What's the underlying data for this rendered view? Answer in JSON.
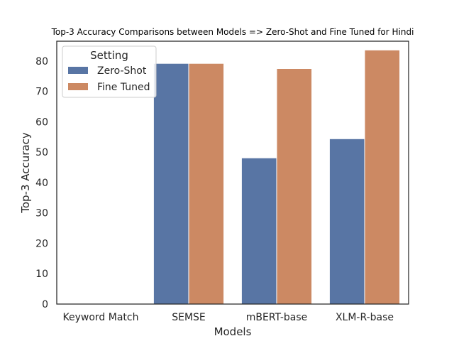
{
  "chart_data": {
    "type": "bar",
    "title": "Top-3 Accuracy Comparisons between Models => Zero-Shot and Fine Tuned for Hindi",
    "xlabel": "Models",
    "ylabel": "Top-3 Accuracy",
    "categories": [
      "Keyword Match",
      "SEMSE",
      "mBERT-base",
      "XLM-R-base"
    ],
    "series": [
      {
        "name": "Zero-Shot",
        "color": "#5875a4",
        "values": [
          0,
          79.2,
          48.1,
          54.4
        ]
      },
      {
        "name": "Fine Tuned",
        "color": "#cc8963",
        "values": [
          0,
          79.2,
          77.5,
          83.6
        ]
      }
    ],
    "ylim": [
      0,
      86.5
    ],
    "yticks": [
      0,
      10,
      20,
      30,
      40,
      50,
      60,
      70,
      80
    ],
    "grid": false,
    "legend": {
      "title": "Setting",
      "placement": "top-left"
    }
  }
}
